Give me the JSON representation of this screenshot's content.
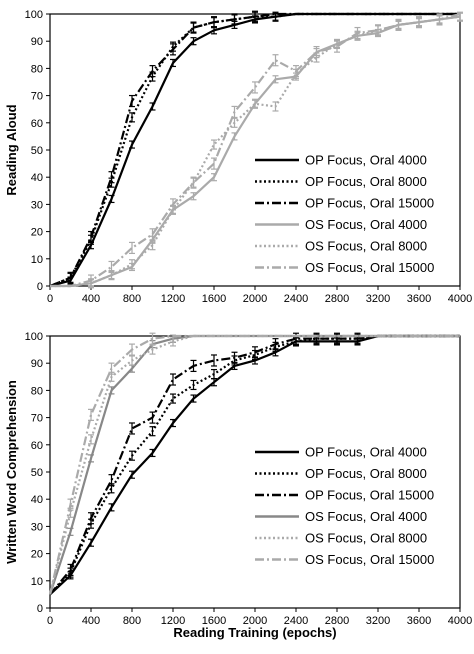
{
  "chart_data": [
    {
      "type": "line",
      "ylabel": "Reading Aloud",
      "xlabel": "",
      "xlim": [
        0,
        4000
      ],
      "ylim": [
        0,
        100
      ],
      "xticks": [
        "0",
        "400",
        "800",
        "1200",
        "1600",
        "2000",
        "2400",
        "2800",
        "3200",
        "3600",
        "4000"
      ],
      "yticks": [
        "0",
        "10",
        "20",
        "30",
        "40",
        "50",
        "60",
        "70",
        "80",
        "90",
        "100"
      ],
      "grid": false,
      "legend_position": "center-right",
      "series": [
        {
          "name": "OP Focus, Oral 4000",
          "color": "#000000",
          "dash": "solid",
          "x": [
            0,
            200,
            400,
            600,
            800,
            1000,
            1200,
            1400,
            1600,
            1800,
            2000,
            2200,
            2400,
            2600,
            2800,
            3000,
            3200,
            3400,
            3600,
            3800,
            4000
          ],
          "y": [
            0,
            2,
            15,
            32,
            52,
            66,
            82,
            90,
            94,
            96,
            98,
            99,
            100,
            100,
            100,
            100,
            100,
            100,
            100,
            100,
            100
          ]
        },
        {
          "name": "OP Focus, Oral 8000",
          "color": "#000000",
          "dash": "dot",
          "x": [
            0,
            200,
            400,
            600,
            800,
            1000,
            1200,
            1400,
            1600,
            1800,
            2000,
            2200,
            2400,
            2600,
            2800,
            3000,
            3200,
            3400,
            3600,
            3800,
            4000
          ],
          "y": [
            0,
            3,
            17,
            38,
            62,
            77,
            88,
            95,
            97,
            98,
            99,
            99,
            100,
            100,
            100,
            100,
            100,
            100,
            100,
            100,
            100
          ]
        },
        {
          "name": "OP Focus, Oral 15000",
          "color": "#000000",
          "dash": "dashdot",
          "x": [
            0,
            200,
            400,
            600,
            800,
            1000,
            1200,
            1400,
            1600,
            1800,
            2000,
            2200,
            2400,
            2600,
            2800,
            3000,
            3200,
            3400,
            3600,
            3800,
            4000
          ],
          "y": [
            0,
            3,
            18,
            40,
            68,
            79,
            87,
            95,
            97,
            98,
            99,
            100,
            100,
            100,
            100,
            100,
            100,
            100,
            100,
            100,
            100
          ]
        },
        {
          "name": "OS Focus, Oral 4000",
          "color": "#aaaaaa",
          "dash": "solid",
          "x": [
            0,
            200,
            400,
            600,
            800,
            1000,
            1200,
            1400,
            1600,
            1800,
            2000,
            2200,
            2400,
            2600,
            2800,
            3000,
            3200,
            3400,
            3600,
            3800,
            4000
          ],
          "y": [
            0,
            0,
            1,
            4,
            7,
            17,
            28,
            33,
            40,
            55,
            67,
            76,
            77,
            86,
            89,
            92,
            93,
            96,
            97,
            98,
            99
          ]
        },
        {
          "name": "OS Focus, Oral 8000",
          "color": "#aaaaaa",
          "dash": "dot",
          "x": [
            0,
            200,
            400,
            600,
            800,
            1000,
            1200,
            1400,
            1600,
            1800,
            2000,
            2200,
            2400,
            2600,
            2800,
            3000,
            3200,
            3400,
            3600,
            3800,
            4000
          ],
          "y": [
            0,
            0,
            1,
            4,
            8,
            15,
            28,
            38,
            52,
            60,
            67,
            66,
            78,
            84,
            89,
            92,
            94,
            96,
            97,
            98,
            99
          ]
        },
        {
          "name": "OS Focus, Oral 15000",
          "color": "#aaaaaa",
          "dash": "dashdot",
          "x": [
            0,
            200,
            400,
            600,
            800,
            1000,
            1200,
            1400,
            1600,
            1800,
            2000,
            2200,
            2400,
            2600,
            2800,
            3000,
            3200,
            3400,
            3600,
            3800,
            4000
          ],
          "y": [
            0,
            0,
            2,
            7,
            14,
            19,
            30,
            38,
            45,
            64,
            73,
            83,
            79,
            86,
            88,
            93,
            94,
            96,
            97,
            98,
            100
          ]
        }
      ]
    },
    {
      "type": "line",
      "ylabel": "Written Word Comprehension",
      "xlabel": "Reading Training (epochs)",
      "xlim": [
        0,
        4000
      ],
      "ylim": [
        0,
        100
      ],
      "xticks": [
        "0",
        "400",
        "800",
        "1200",
        "1600",
        "2000",
        "2400",
        "2800",
        "3200",
        "3600",
        "4000"
      ],
      "yticks": [
        "0",
        "10",
        "20",
        "30",
        "40",
        "50",
        "60",
        "70",
        "80",
        "90",
        "100"
      ],
      "grid": false,
      "legend_position": "bottom-right",
      "series": [
        {
          "name": "OP Focus, Oral 4000",
          "color": "#000000",
          "dash": "solid",
          "x": [
            0,
            200,
            400,
            600,
            800,
            1000,
            1200,
            1400,
            1600,
            1800,
            2000,
            2200,
            2400,
            2600,
            2800,
            3000,
            3200,
            3400,
            3600,
            3800,
            4000
          ],
          "y": [
            5,
            12,
            24,
            37,
            49,
            57,
            68,
            77,
            83,
            89,
            91,
            94,
            98,
            98,
            98,
            98,
            100,
            100,
            100,
            100,
            100
          ]
        },
        {
          "name": "OP Focus, Oral 8000",
          "color": "#000000",
          "dash": "dot",
          "x": [
            0,
            200,
            400,
            600,
            800,
            1000,
            1200,
            1400,
            1600,
            1800,
            2000,
            2200,
            2400,
            2600,
            2800,
            3000,
            3200,
            3400,
            3600,
            3800,
            4000
          ],
          "y": [
            5,
            13,
            31,
            44,
            56,
            65,
            77,
            82,
            86,
            91,
            93,
            96,
            98,
            99,
            99,
            99,
            100,
            100,
            100,
            100,
            100
          ]
        },
        {
          "name": "OP Focus, Oral 15000",
          "color": "#000000",
          "dash": "dashdot",
          "x": [
            0,
            200,
            400,
            600,
            800,
            1000,
            1200,
            1400,
            1600,
            1800,
            2000,
            2200,
            2400,
            2600,
            2800,
            3000,
            3200,
            3400,
            3600,
            3800,
            4000
          ],
          "y": [
            5,
            14,
            33,
            47,
            66,
            70,
            84,
            89,
            91,
            92,
            94,
            97,
            99,
            99,
            99,
            99,
            100,
            100,
            100,
            100,
            100
          ]
        },
        {
          "name": "OS Focus, Oral 4000",
          "color": "#888888",
          "dash": "solid",
          "x": [
            0,
            200,
            400,
            600,
            800,
            1000,
            1200,
            1400,
            1600,
            1800,
            2000,
            2200,
            2400,
            2600,
            2800,
            3000,
            3200,
            3400,
            3600,
            3800,
            4000
          ],
          "y": [
            5,
            28,
            55,
            80,
            88,
            97,
            99,
            100,
            100,
            100,
            100,
            100,
            100,
            100,
            100,
            100,
            100,
            100,
            100,
            100,
            100
          ]
        },
        {
          "name": "OS Focus, Oral 8000",
          "color": "#aaaaaa",
          "dash": "dot",
          "x": [
            0,
            200,
            400,
            600,
            800,
            1000,
            1200,
            1400,
            1600,
            1800,
            2000,
            2200,
            2400,
            2600,
            2800,
            3000,
            3200,
            3400,
            3600,
            3800,
            4000
          ],
          "y": [
            5,
            35,
            62,
            85,
            91,
            95,
            98,
            100,
            100,
            100,
            100,
            100,
            100,
            100,
            100,
            100,
            100,
            100,
            100,
            100,
            100
          ]
        },
        {
          "name": "OS Focus, Oral 15000",
          "color": "#aaaaaa",
          "dash": "dashdot",
          "x": [
            0,
            200,
            400,
            600,
            800,
            1000,
            1200,
            1400,
            1600,
            1800,
            2000,
            2200,
            2400,
            2600,
            2800,
            3000,
            3200,
            3400,
            3600,
            3800,
            4000
          ],
          "y": [
            5,
            38,
            71,
            88,
            95,
            99,
            100,
            100,
            100,
            100,
            100,
            100,
            100,
            100,
            100,
            100,
            100,
            100,
            100,
            100,
            100
          ]
        }
      ]
    }
  ]
}
